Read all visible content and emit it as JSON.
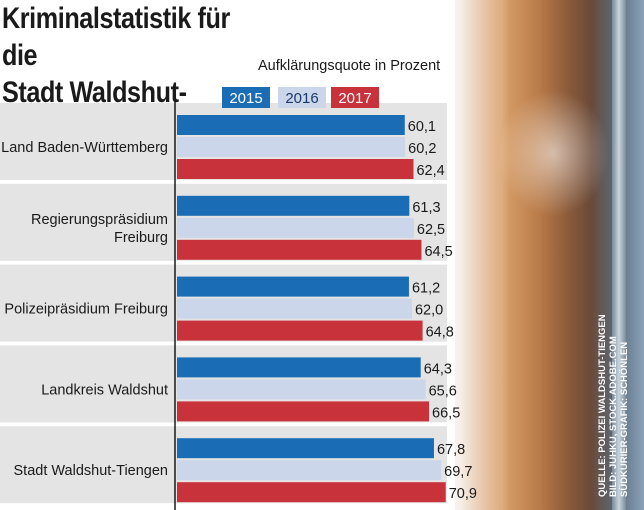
{
  "chart_data": {
    "type": "bar",
    "orientation": "horizontal",
    "title": "Kriminalstatistik für die Stadt Waldshut-Tiengen",
    "title_lines": [
      "Kriminalstatistik für die",
      "Stadt Waldshut-Tiengen"
    ],
    "subtitle": "Aufklärungsquote in Prozent",
    "categories": [
      "Land Baden-Württemberg",
      "Regierungspräsidium Freiburg",
      "Polizeipräsidium Freiburg",
      "Landkreis Waldshut",
      "Stadt Waldshut-Tiengen"
    ],
    "category_lines": [
      [
        "Land Baden-Württemberg"
      ],
      [
        "Regierungspräsidium",
        "Freiburg"
      ],
      [
        "Polizeipräsidium Freiburg"
      ],
      [
        "Landkreis Waldshut"
      ],
      [
        "Stadt Waldshut-Tiengen"
      ]
    ],
    "series": [
      {
        "name": "2015",
        "color": "#1a6db5",
        "values": [
          60.1,
          61.3,
          61.2,
          64.3,
          67.8
        ],
        "labels": [
          "60,1",
          "61,3",
          "61,2",
          "64,3",
          "67,8"
        ]
      },
      {
        "name": "2016",
        "color": "#ccd6ea",
        "values": [
          60.2,
          62.5,
          62.0,
          65.6,
          69.7
        ],
        "labels": [
          "60,2",
          "62,5",
          "62,0",
          "65,6",
          "69,7"
        ]
      },
      {
        "name": "2017",
        "color": "#c8323a",
        "values": [
          62.4,
          64.5,
          64.8,
          66.5,
          70.9
        ],
        "labels": [
          "62,4",
          "64,5",
          "64,8",
          "66,5",
          "70,9"
        ]
      }
    ],
    "legend_position": "top",
    "grid": false
  },
  "source_credit": [
    "QUELLE: POLIZEI WALDSHUT-TIENGEN",
    "BILD: JUHKU, STOCK.ADOBE.COM",
    "SÜDKURIER-GRAFIK: SCHÖNLEN"
  ],
  "colors": {
    "blue": "#1a6db5",
    "light": "#ccd6ea",
    "red": "#c8323a",
    "group_band": "#e4e4e4"
  }
}
